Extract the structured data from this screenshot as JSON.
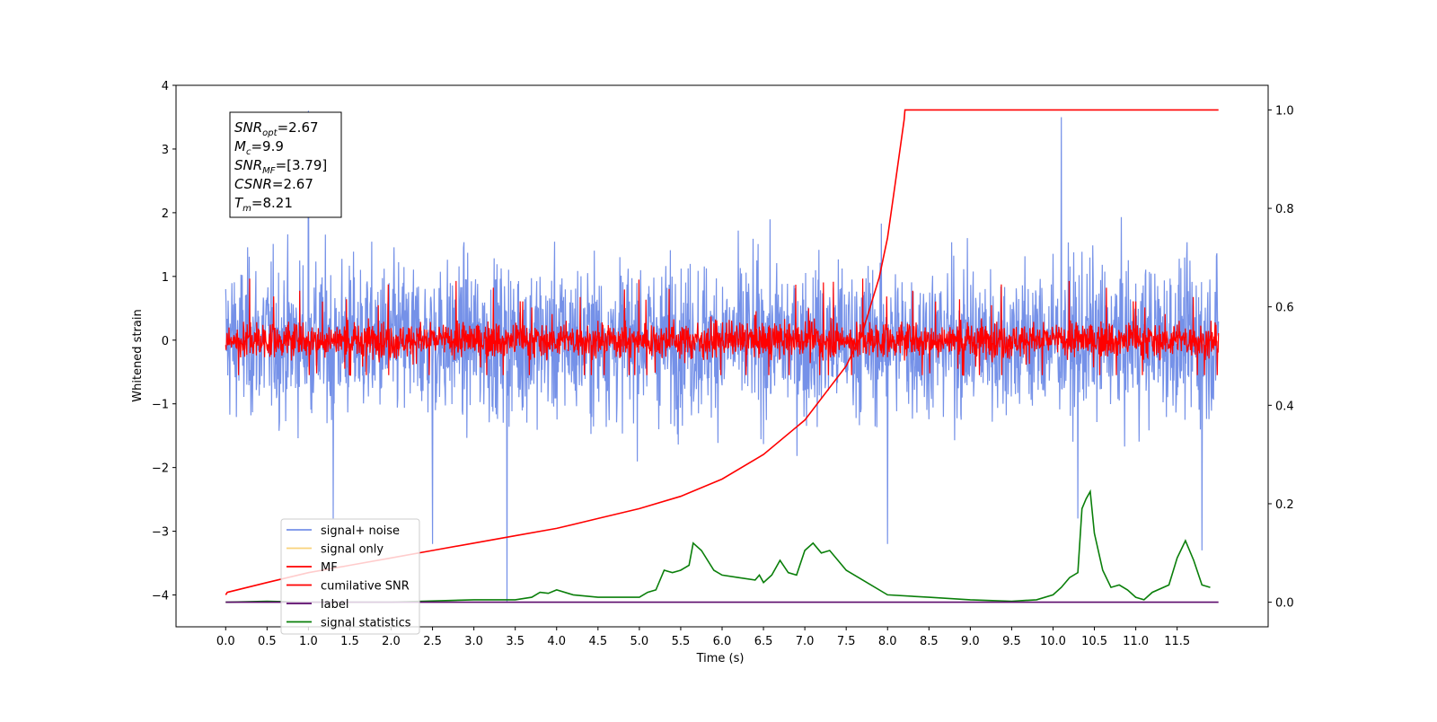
{
  "chart_data": {
    "type": "line",
    "title": "",
    "xlabel": "Time (s)",
    "ylabel": "Whitened strain",
    "ylabel_right": "",
    "xlim": [
      -0.6,
      12.6
    ],
    "ylim": [
      -4.5,
      4.0
    ],
    "ylim_right": [
      -0.05,
      1.05
    ],
    "x_ticks": [
      "0.0",
      "0.5",
      "1.0",
      "1.5",
      "2.0",
      "2.5",
      "3.0",
      "3.5",
      "4.0",
      "4.5",
      "5.0",
      "5.5",
      "6.0",
      "6.5",
      "7.0",
      "7.5",
      "8.0",
      "8.5",
      "9.0",
      "9.5",
      "10.0",
      "10.5",
      "11.0",
      "11.5"
    ],
    "y_ticks": [
      "4",
      "3",
      "2",
      "1",
      "0",
      "−1",
      "−2",
      "−3",
      "−4"
    ],
    "y_ticks_right": [
      "1.0",
      "0.8",
      "0.6",
      "0.4",
      "0.2",
      "0.0"
    ],
    "grid": false,
    "legend_position": "lower-left",
    "legend": [
      {
        "name": "signal+ noise",
        "color": "#7591e8"
      },
      {
        "name": "signal only",
        "color": "#f9d27a"
      },
      {
        "name": "MF",
        "color": "#ff0000"
      },
      {
        "name": "cumilative SNR",
        "color": "#ff0000"
      },
      {
        "name": "label",
        "color": "#5c0a6b"
      },
      {
        "name": "signal statistics",
        "color": "#0a7f0a"
      }
    ],
    "info_box": [
      {
        "main": "SNR",
        "sub": "opt",
        "rest": "=2.67"
      },
      {
        "main": "M",
        "sub": "c",
        "rest": "=9.9"
      },
      {
        "main": "SNR",
        "sub": "MF",
        "rest": "=[3.79]"
      },
      {
        "main": "CSNR",
        "sub": "",
        "rest": "=2.67"
      },
      {
        "main": "T",
        "sub": "m",
        "rest": "=8.21"
      }
    ],
    "series": [
      {
        "name": "signal+ noise",
        "axis": "left",
        "description_of_values": "whitened noise, roughly within -2.5..2.7, spikes to 3.6 and -4.1",
        "x_range": [
          0.0,
          12.0
        ],
        "spread": 2.0,
        "spikes": [
          [
            1.0,
            3.6
          ],
          [
            3.4,
            -4.1
          ],
          [
            10.1,
            3.5
          ],
          [
            8.0,
            -3.2
          ],
          [
            10.3,
            -2.8
          ],
          [
            11.8,
            -3.3
          ],
          [
            2.5,
            -3.2
          ],
          [
            1.3,
            -2.8
          ]
        ]
      },
      {
        "name": "MF",
        "axis": "left",
        "x_range": [
          0.0,
          12.0
        ],
        "spread": 0.45
      },
      {
        "name": "cumilative SNR",
        "axis": "right",
        "x": [
          0.0,
          0.02,
          0.5,
          1.0,
          1.5,
          2.0,
          2.5,
          3.0,
          3.5,
          4.0,
          4.5,
          5.0,
          5.5,
          6.0,
          6.5,
          7.0,
          7.5,
          7.7,
          7.9,
          8.0,
          8.1,
          8.2,
          8.21,
          12.0
        ],
        "values": [
          0.015,
          0.02,
          0.04,
          0.06,
          0.075,
          0.09,
          0.105,
          0.12,
          0.135,
          0.15,
          0.17,
          0.19,
          0.215,
          0.25,
          0.3,
          0.37,
          0.48,
          0.55,
          0.66,
          0.74,
          0.86,
          0.98,
          1.0,
          1.0
        ]
      },
      {
        "name": "label",
        "axis": "right",
        "x": [
          0.0,
          12.0
        ],
        "values": [
          0.0,
          0.0
        ]
      },
      {
        "name": "signal statistics",
        "axis": "right",
        "x": [
          0.0,
          0.5,
          1.0,
          2.0,
          3.0,
          3.5,
          3.7,
          3.8,
          3.9,
          4.0,
          4.2,
          4.5,
          5.0,
          5.1,
          5.2,
          5.3,
          5.4,
          5.5,
          5.6,
          5.65,
          5.75,
          5.9,
          6.0,
          6.2,
          6.4,
          6.45,
          6.5,
          6.6,
          6.7,
          6.8,
          6.9,
          7.0,
          7.1,
          7.2,
          7.3,
          7.4,
          7.5,
          7.7,
          8.0,
          8.5,
          9.0,
          9.5,
          9.8,
          10.0,
          10.1,
          10.2,
          10.3,
          10.35,
          10.4,
          10.45,
          10.5,
          10.6,
          10.7,
          10.8,
          10.9,
          11.0,
          11.1,
          11.2,
          11.4,
          11.5,
          11.6,
          11.7,
          11.8,
          11.9
        ],
        "values": [
          0.0,
          0.002,
          0.0,
          0.0,
          0.005,
          0.005,
          0.01,
          0.02,
          0.018,
          0.025,
          0.015,
          0.01,
          0.01,
          0.02,
          0.025,
          0.065,
          0.06,
          0.065,
          0.075,
          0.12,
          0.105,
          0.065,
          0.055,
          0.05,
          0.045,
          0.055,
          0.04,
          0.055,
          0.085,
          0.06,
          0.055,
          0.105,
          0.12,
          0.1,
          0.105,
          0.085,
          0.065,
          0.045,
          0.015,
          0.01,
          0.005,
          0.002,
          0.005,
          0.015,
          0.03,
          0.05,
          0.06,
          0.19,
          0.21,
          0.225,
          0.14,
          0.065,
          0.03,
          0.035,
          0.025,
          0.01,
          0.005,
          0.02,
          0.035,
          0.09,
          0.125,
          0.085,
          0.035,
          0.03
        ]
      }
    ]
  }
}
